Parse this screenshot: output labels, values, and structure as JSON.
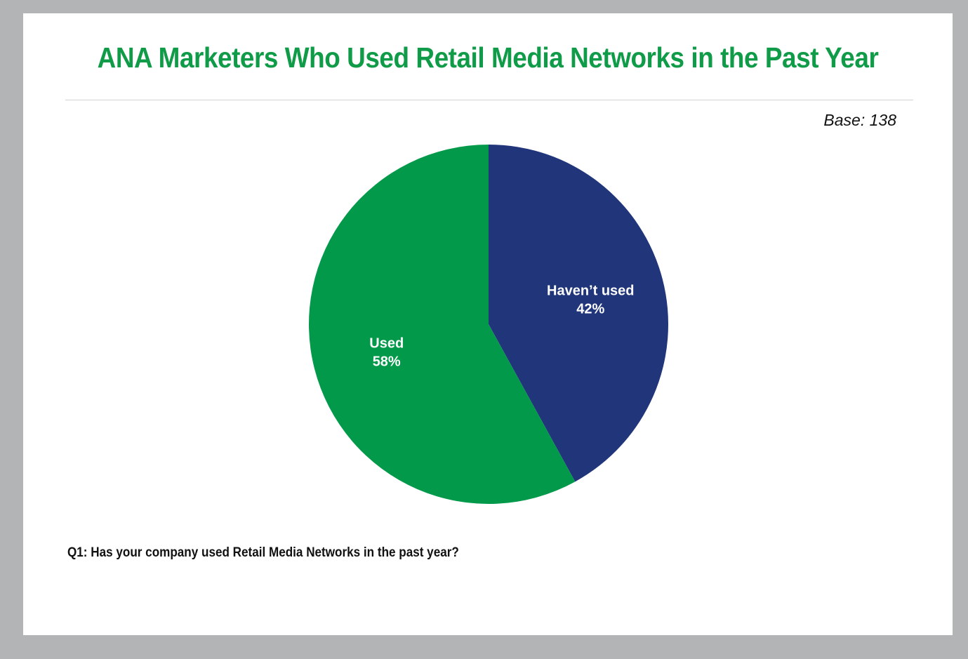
{
  "title": "ANA Marketers Who Used Retail Media Networks in the Past Year",
  "base_note": "Base: 138",
  "question": "Q1: Has your company used Retail Media Networks in the past year?",
  "colors": {
    "title": "#0f9b47",
    "used": "#029a4a",
    "havent_used": "#21367a"
  },
  "chart_data": {
    "type": "pie",
    "start": "12 o'clock, clockwise",
    "slices": [
      {
        "label": "Haven’t used",
        "value": 42,
        "value_label": "42%",
        "color": "#21367a"
      },
      {
        "label": "Used",
        "value": 58,
        "value_label": "58%",
        "color": "#029a4a"
      }
    ]
  }
}
